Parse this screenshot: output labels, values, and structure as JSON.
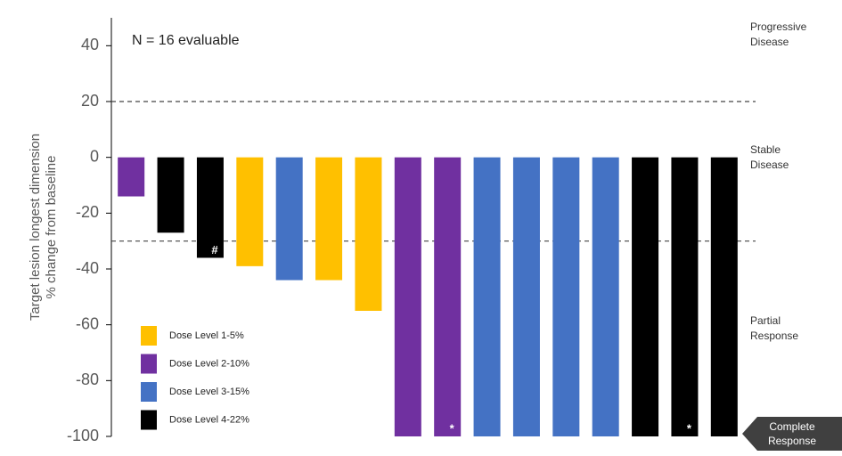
{
  "chart_data": {
    "type": "bar",
    "annotation": "N = 16 evaluable",
    "ylabel": [
      "Target lesion longest dimension",
      "% change from baseline"
    ],
    "categories": [
      null,
      null,
      null,
      null,
      null,
      null,
      null,
      null,
      null,
      null,
      null,
      null,
      null,
      null,
      null,
      null
    ],
    "series": [
      {
        "name": "Dose Level 1-5%",
        "color": "#ffc000",
        "values": [
          null,
          null,
          null,
          -39,
          null,
          -44,
          -55,
          null,
          null,
          null,
          null,
          null,
          null,
          null,
          null,
          null
        ]
      },
      {
        "name": "Dose Level 2-10%",
        "color": "#7030a0",
        "values": [
          -14,
          null,
          null,
          null,
          null,
          null,
          null,
          -100,
          -100,
          null,
          null,
          null,
          null,
          null,
          null,
          null
        ]
      },
      {
        "name": "Dose Level 3-15%",
        "color": "#4472c4",
        "values": [
          null,
          null,
          null,
          null,
          -44,
          null,
          null,
          null,
          null,
          -100,
          -100,
          -100,
          -100,
          null,
          null,
          null
        ]
      },
      {
        "name": "Dose Level 4-22%",
        "color": "#000000",
        "values": [
          null,
          -27,
          -36,
          null,
          null,
          null,
          null,
          null,
          null,
          null,
          null,
          null,
          null,
          -100,
          -100,
          -100
        ]
      }
    ],
    "bar_annotations": [
      {
        "category": 2,
        "text": "#"
      },
      {
        "category": 8,
        "text": "*"
      },
      {
        "category": 14,
        "text": "*"
      }
    ],
    "reference_lines": [
      20,
      -30
    ],
    "region_labels": [
      "Progressive Disease",
      "Stable Disease",
      "Partial Response"
    ],
    "complete_label": "Complete Response",
    "ylim": [
      -100,
      50
    ],
    "yticks": [
      40,
      20,
      0,
      -20,
      -40,
      -60,
      -80,
      -100
    ],
    "legend": "lower left"
  }
}
